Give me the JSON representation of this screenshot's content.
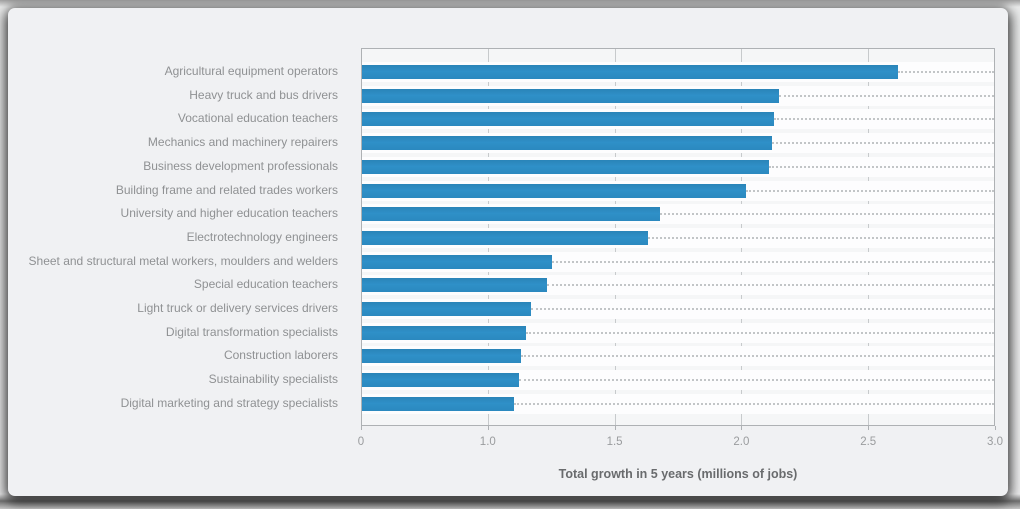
{
  "colors": {
    "bar": "#2d8cc2",
    "card_background": "#f0f1f3",
    "plot_background": "#f5f6f7",
    "row_band": "#fdfdfe",
    "gridline": "#c7cacc",
    "label_text": "#8f9193",
    "axis_title_text": "#696b6d"
  },
  "chart_data": {
    "type": "bar",
    "orientation": "horizontal",
    "title": "",
    "xlabel": "Total growth in 5 years (millions of jobs)",
    "ylabel": "",
    "xlim": [
      0,
      3.0
    ],
    "grid": "vertical",
    "legend": "none",
    "x_tick_labels": [
      "0",
      "1.0",
      "1.5",
      "2.0",
      "2.5",
      "3.0"
    ],
    "categories": [
      "Agricultural equipment operators",
      "Heavy truck and bus drivers",
      "Vocational education teachers",
      "Mechanics and machinery repairers",
      "Business development professionals",
      "Building frame and related trades workers",
      "University and higher education teachers",
      "Electrotechnology engineers",
      "Sheet and structural metal workers, moulders and welders",
      "Special education teachers",
      "Light truck or delivery services drivers",
      "Digital transformation specialists",
      "Construction laborers",
      "Sustainability specialists",
      "Digital marketing and strategy specialists"
    ],
    "values": [
      2.62,
      2.15,
      2.13,
      2.12,
      2.11,
      2.02,
      1.68,
      1.63,
      1.25,
      1.23,
      1.17,
      1.15,
      1.13,
      1.12,
      1.1
    ]
  }
}
